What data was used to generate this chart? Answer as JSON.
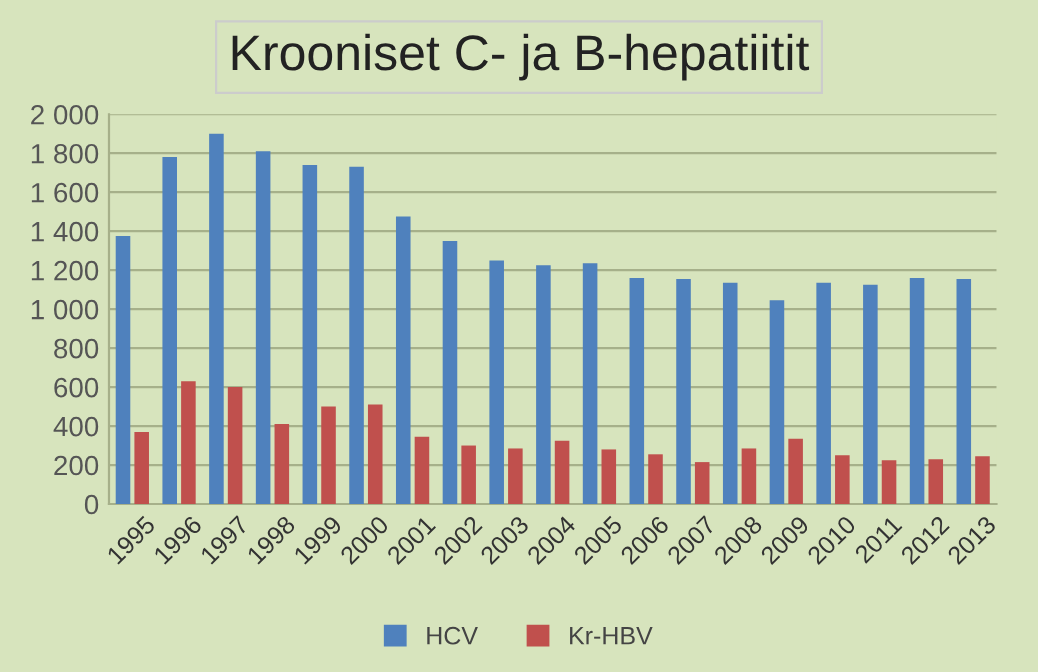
{
  "chart_data": {
    "type": "bar",
    "title": "Krooniset C- ja B-hepatiitit",
    "categories": [
      "1995",
      "1996",
      "1997",
      "1998",
      "1999",
      "2000",
      "2001",
      "2002",
      "2003",
      "2004",
      "2005",
      "2006",
      "2007",
      "2008",
      "2009",
      "2010",
      "2011",
      "2012",
      "2013"
    ],
    "series": [
      {
        "name": "HCV",
        "color": "#4f81bd",
        "values": [
          1375,
          1780,
          1900,
          1810,
          1740,
          1730,
          1475,
          1350,
          1250,
          1225,
          1235,
          1160,
          1155,
          1135,
          1045,
          1135,
          1125,
          1160,
          1155
        ]
      },
      {
        "name": "Kr-HBV",
        "color": "#c0504d",
        "values": [
          370,
          630,
          600,
          410,
          500,
          510,
          345,
          300,
          285,
          325,
          280,
          255,
          215,
          285,
          335,
          250,
          225,
          230,
          245
        ]
      }
    ],
    "ylim": [
      0,
      2000
    ],
    "yticks": [
      0,
      200,
      400,
      600,
      800,
      {
        "value": 1000,
        "label": "1 000"
      },
      {
        "value": 1200,
        "label": "1 200"
      },
      {
        "value": 1400,
        "label": "1 400"
      },
      {
        "value": 1600,
        "label": "1 600"
      },
      {
        "value": 1800,
        "label": "1 800"
      },
      {
        "value": 2000,
        "label": "2 000"
      }
    ],
    "grid": "y",
    "legend": "bottom"
  }
}
